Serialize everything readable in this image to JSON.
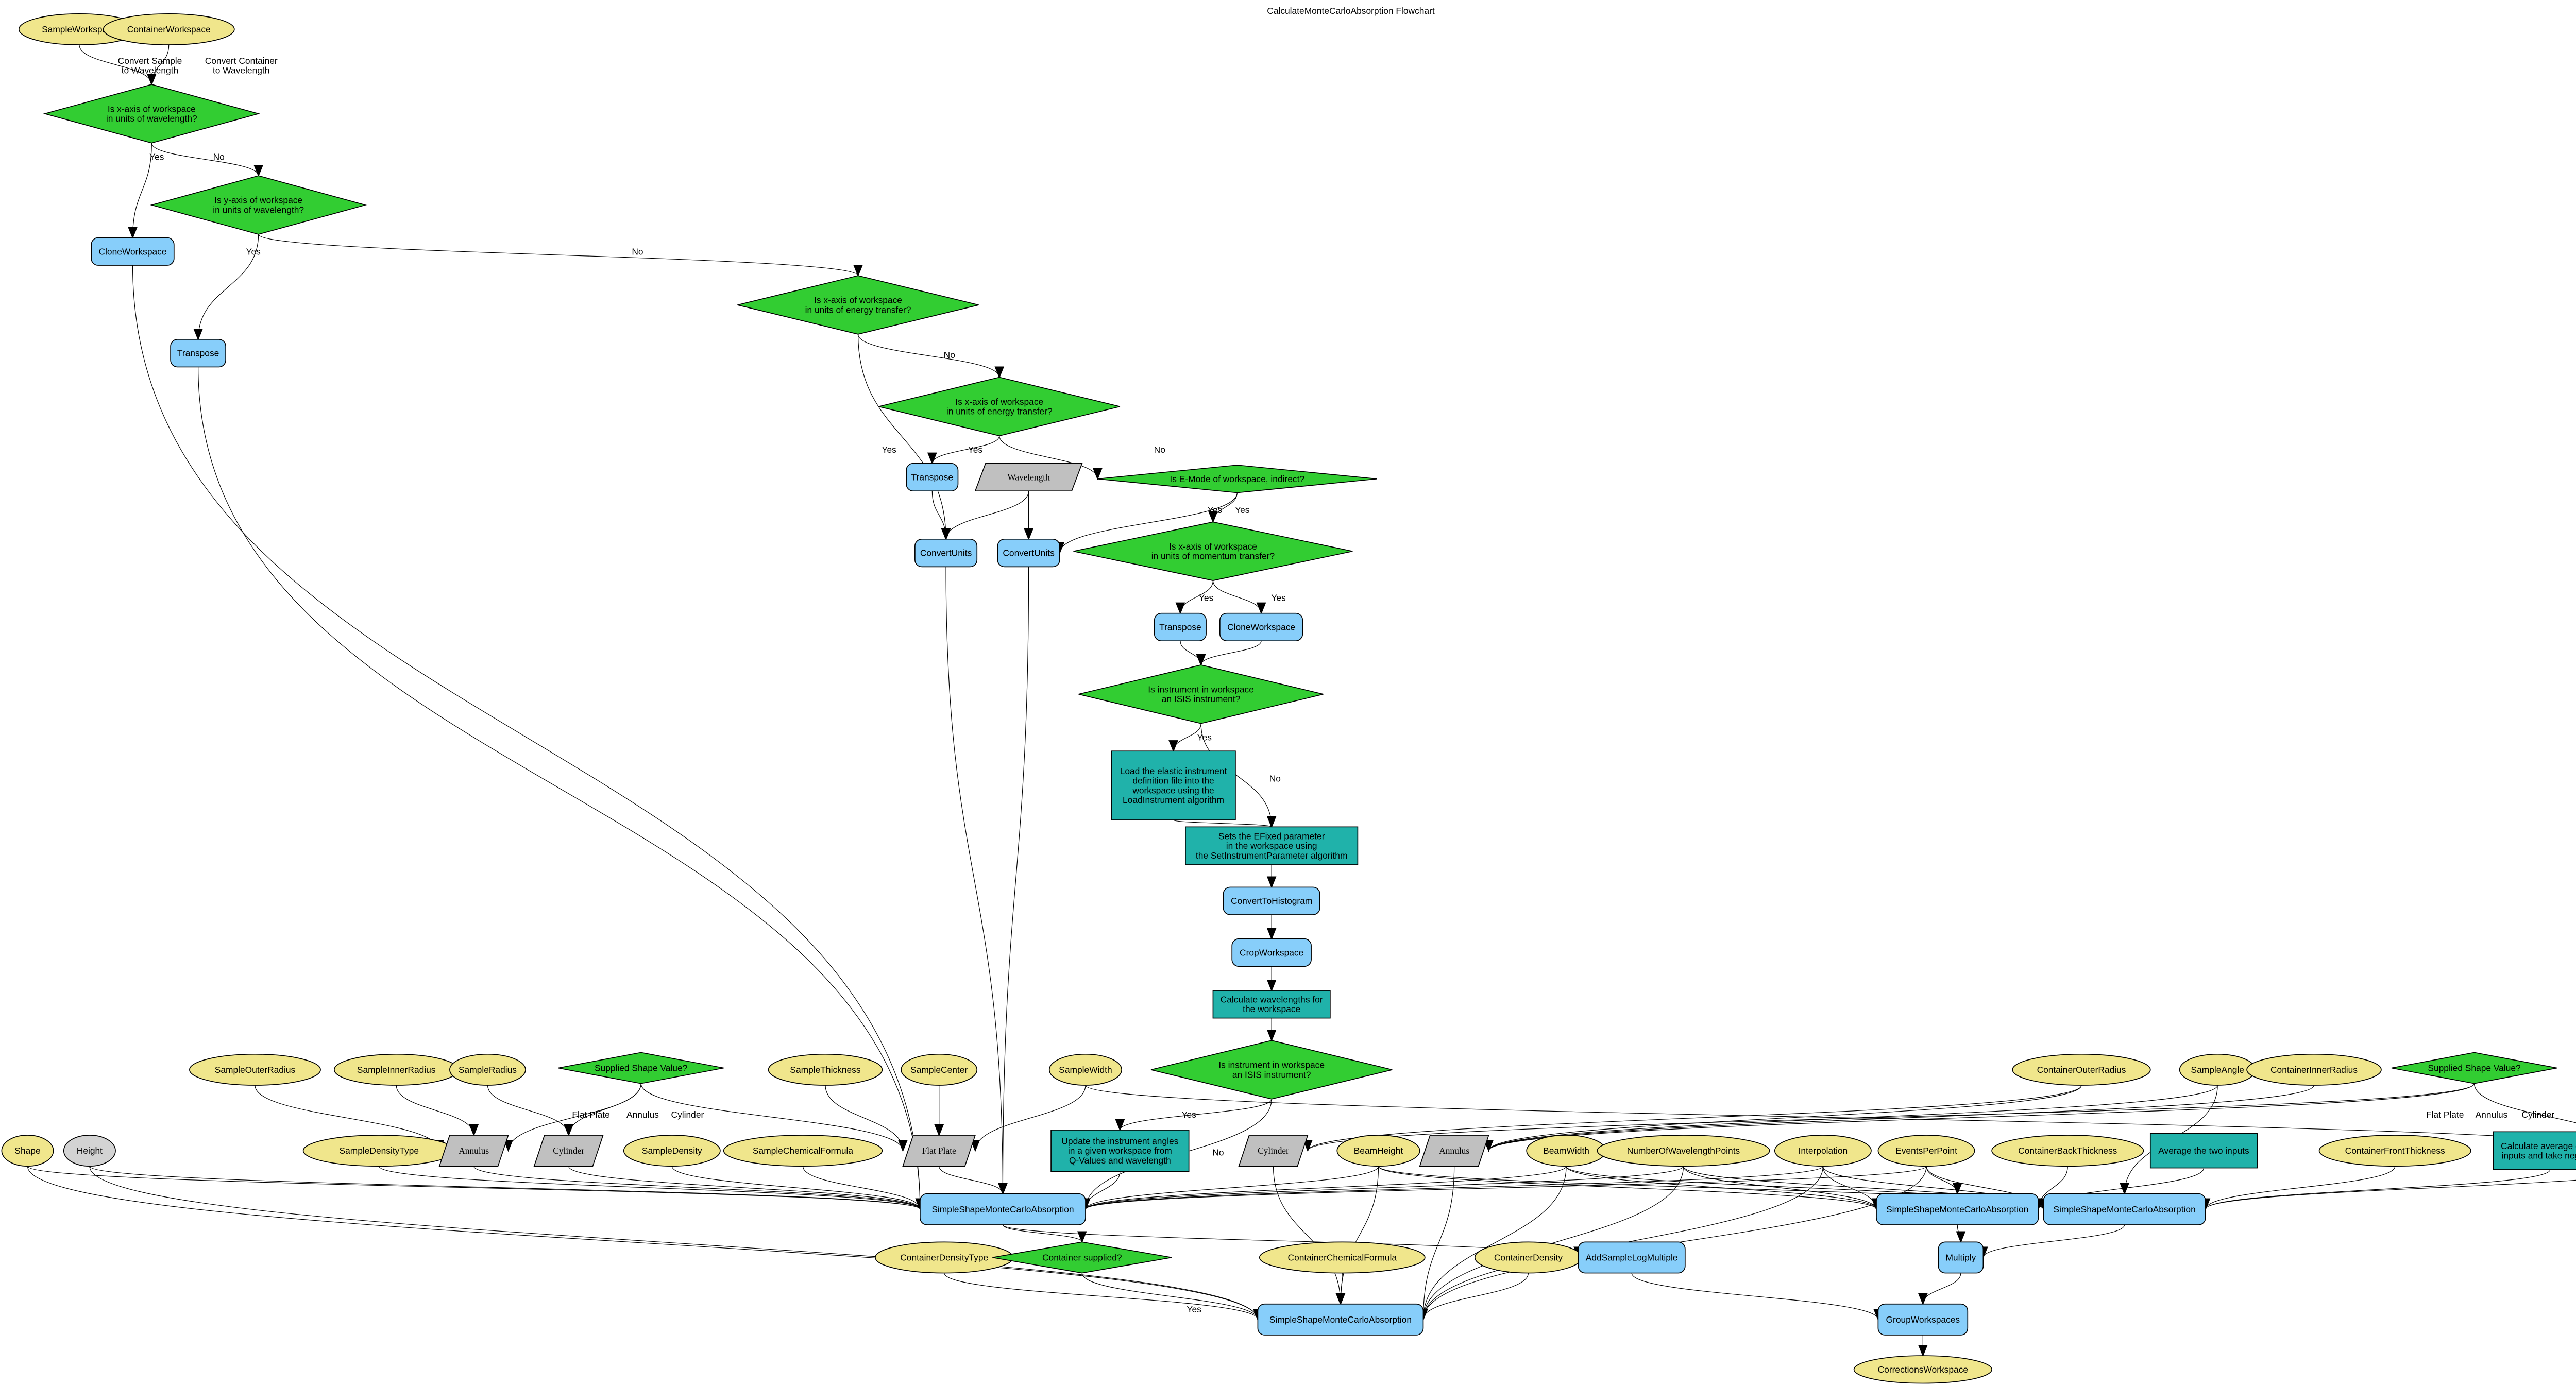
{
  "title": "CalculateMonteCarloAbsorption Flowchart",
  "colors": {
    "input": "#f0e68c",
    "optional_input": "#d3d3d3",
    "decision": "#32cd32",
    "algorithm": "#87cefa",
    "process": "#20b2aa",
    "value": "#c0c0c0"
  },
  "nodes": [
    {
      "id": "sampleWs",
      "label": "SampleWorkspace",
      "shape": "ellipse"
    },
    {
      "id": "containerWs",
      "label": "ContainerWorkspace",
      "shape": "ellipse"
    },
    {
      "id": "d1",
      "label": "Is x-axis of workspace\nin units of wavelength?",
      "shape": "diamond"
    },
    {
      "id": "d2",
      "label": "Is y-axis of workspace\nin units of wavelength?",
      "shape": "diamond"
    },
    {
      "id": "clone1",
      "label": "CloneWorkspace",
      "shape": "algorithm"
    },
    {
      "id": "tr1",
      "label": "Transpose",
      "shape": "algorithm"
    },
    {
      "id": "d3",
      "label": "Is x-axis of workspace\nin units of energy transfer?",
      "shape": "diamond"
    },
    {
      "id": "d4",
      "label": "Is x-axis of workspace\nin units of energy transfer?",
      "shape": "diamond"
    },
    {
      "id": "tr2",
      "label": "Transpose",
      "shape": "algorithm"
    },
    {
      "id": "wl",
      "label": "Wavelength",
      "shape": "parallelogram"
    },
    {
      "id": "d5",
      "label": "Is E-Mode of workspace, indirect?",
      "shape": "diamond"
    },
    {
      "id": "cu1",
      "label": "ConvertUnits",
      "shape": "algorithm"
    },
    {
      "id": "cu2",
      "label": "ConvertUnits",
      "shape": "algorithm"
    },
    {
      "id": "d6",
      "label": "Is x-axis of workspace\nin units of momentum transfer?",
      "shape": "diamond"
    },
    {
      "id": "tr3",
      "label": "Transpose",
      "shape": "algorithm"
    },
    {
      "id": "clone2",
      "label": "CloneWorkspace",
      "shape": "algorithm"
    },
    {
      "id": "d7",
      "label": "Is instrument in workspace\nan ISIS instrument?",
      "shape": "diamond"
    },
    {
      "id": "load",
      "label": "Load the elastic instrument\ndefinition file into the\nworkspace using the\nLoadInstrument algorithm",
      "shape": "process"
    },
    {
      "id": "efixed",
      "label": "Sets the EFixed parameter\nin the workspace using\nthe SetInstrumentParameter algorithm",
      "shape": "process"
    },
    {
      "id": "cth",
      "label": "ConvertToHistogram",
      "shape": "algorithm"
    },
    {
      "id": "crop",
      "label": "CropWorkspace",
      "shape": "algorithm"
    },
    {
      "id": "calcwl",
      "label": "Calculate wavelengths for\nthe workspace",
      "shape": "process"
    },
    {
      "id": "d8",
      "label": "Is instrument in workspace\nan ISIS instrument?",
      "shape": "diamond"
    },
    {
      "id": "sor",
      "label": "SampleOuterRadius",
      "shape": "ellipse"
    },
    {
      "id": "sir",
      "label": "SampleInnerRadius",
      "shape": "ellipse"
    },
    {
      "id": "sr",
      "label": "SampleRadius",
      "shape": "ellipse"
    },
    {
      "id": "ssv1",
      "label": "Supplied Shape Value?",
      "shape": "diamond"
    },
    {
      "id": "sth",
      "label": "SampleThickness",
      "shape": "ellipse"
    },
    {
      "id": "sc",
      "label": "SampleCenter",
      "shape": "ellipse"
    },
    {
      "id": "swd",
      "label": "SampleWidth",
      "shape": "ellipse"
    },
    {
      "id": "cor",
      "label": "ContainerOuterRadius",
      "shape": "ellipse"
    },
    {
      "id": "sang",
      "label": "SampleAngle",
      "shape": "ellipse"
    },
    {
      "id": "cir",
      "label": "ContainerInnerRadius",
      "shape": "ellipse"
    },
    {
      "id": "ssv2",
      "label": "Supplied Shape Value?",
      "shape": "diamond"
    },
    {
      "id": "shape",
      "label": "Shape",
      "shape": "ellipse"
    },
    {
      "id": "height",
      "label": "Height",
      "shape": "ellipse-gray"
    },
    {
      "id": "sdt",
      "label": "SampleDensityType",
      "shape": "ellipse"
    },
    {
      "id": "ann1",
      "label": "Annulus",
      "shape": "parallelogram"
    },
    {
      "id": "cyl1",
      "label": "Cylinder",
      "shape": "parallelogram"
    },
    {
      "id": "sd",
      "label": "SampleDensity",
      "shape": "ellipse"
    },
    {
      "id": "scf",
      "label": "SampleChemicalFormula",
      "shape": "ellipse"
    },
    {
      "id": "flat1",
      "label": "Flat Plate",
      "shape": "parallelogram"
    },
    {
      "id": "update",
      "label": "Update the instrument angles\nin a given workspace from\nQ-Values and wavelength",
      "shape": "process"
    },
    {
      "id": "cyl2",
      "label": "Cylinder",
      "shape": "parallelogram"
    },
    {
      "id": "bh",
      "label": "BeamHeight",
      "shape": "ellipse"
    },
    {
      "id": "ann2",
      "label": "Annulus",
      "shape": "parallelogram"
    },
    {
      "id": "bw",
      "label": "BeamWidth",
      "shape": "ellipse"
    },
    {
      "id": "nwp",
      "label": "NumberOfWavelengthPoints",
      "shape": "ellipse"
    },
    {
      "id": "interp",
      "label": "Interpolation",
      "shape": "ellipse"
    },
    {
      "id": "epp",
      "label": "EventsPerPoint",
      "shape": "ellipse"
    },
    {
      "id": "cbt",
      "label": "ContainerBackThickness",
      "shape": "ellipse"
    },
    {
      "id": "avg",
      "label": "Average the two inputs",
      "shape": "process"
    },
    {
      "id": "cft",
      "label": "ContainerFrontThickness",
      "shape": "ellipse"
    },
    {
      "id": "avgneg",
      "label": "Calculate average of two\ninputs and take negative",
      "shape": "process"
    },
    {
      "id": "flat2",
      "label": "Flat Plate",
      "shape": "parallelogram"
    },
    {
      "id": "ss1",
      "label": "SimpleShapeMonteCarloAbsorption",
      "shape": "algorithm"
    },
    {
      "id": "ssA",
      "label": "SimpleShapeMonteCarloAbsorption",
      "shape": "algorithm"
    },
    {
      "id": "ssB",
      "label": "SimpleShapeMonteCarloAbsorption",
      "shape": "algorithm"
    },
    {
      "id": "cdt",
      "label": "ContainerDensityType",
      "shape": "ellipse"
    },
    {
      "id": "csup",
      "label": "Container supplied?",
      "shape": "diamond"
    },
    {
      "id": "ccf",
      "label": "ContainerChemicalFormula",
      "shape": "ellipse"
    },
    {
      "id": "cd",
      "label": "ContainerDensity",
      "shape": "ellipse"
    },
    {
      "id": "addlog",
      "label": "AddSampleLogMultiple",
      "shape": "algorithm"
    },
    {
      "id": "mult",
      "label": "Multiply",
      "shape": "algorithm"
    },
    {
      "id": "ss3",
      "label": "SimpleShapeMonteCarloAbsorption",
      "shape": "algorithm"
    },
    {
      "id": "group",
      "label": "GroupWorkspaces",
      "shape": "algorithm"
    },
    {
      "id": "corr",
      "label": "CorrectionsWorkspace",
      "shape": "ellipse"
    }
  ],
  "edges": [
    {
      "from": "sampleWs",
      "to": "d1",
      "label": "Convert Sample\nto Wavelength"
    },
    {
      "from": "containerWs",
      "to": "d1",
      "label": "Convert Container\nto Wavelength"
    },
    {
      "from": "d1",
      "to": "clone1",
      "label": "Yes"
    },
    {
      "from": "d1",
      "to": "d2",
      "label": "No"
    },
    {
      "from": "d2",
      "to": "tr1",
      "label": "Yes"
    },
    {
      "from": "d2",
      "to": "d3",
      "label": "No"
    },
    {
      "from": "d3",
      "to": "cu1",
      "label": "Yes"
    },
    {
      "from": "d3",
      "to": "d4",
      "label": "No"
    },
    {
      "from": "d4",
      "to": "tr2",
      "label": "Yes"
    },
    {
      "from": "d4",
      "to": "d5",
      "label": "No"
    },
    {
      "from": "tr2",
      "to": "cu1",
      "label": ""
    },
    {
      "from": "wl",
      "to": "cu1",
      "label": ""
    },
    {
      "from": "wl",
      "to": "cu2",
      "label": ""
    },
    {
      "from": "d5",
      "to": "d6",
      "label": "Yes"
    },
    {
      "from": "d5",
      "to": "cu2",
      "label": "Yes"
    },
    {
      "from": "d6",
      "to": "tr3",
      "label": "Yes"
    },
    {
      "from": "d6",
      "to": "clone2",
      "label": "Yes"
    },
    {
      "from": "tr3",
      "to": "d7",
      "label": ""
    },
    {
      "from": "clone2",
      "to": "d7",
      "label": ""
    },
    {
      "from": "d7",
      "to": "load",
      "label": "Yes"
    },
    {
      "from": "d7",
      "to": "efixed",
      "label": "No"
    },
    {
      "from": "load",
      "to": "efixed",
      "label": ""
    },
    {
      "from": "efixed",
      "to": "cth",
      "label": ""
    },
    {
      "from": "cth",
      "to": "crop",
      "label": ""
    },
    {
      "from": "crop",
      "to": "calcwl",
      "label": ""
    },
    {
      "from": "calcwl",
      "to": "d8",
      "label": ""
    },
    {
      "from": "d8",
      "to": "update",
      "label": "Yes"
    },
    {
      "from": "d8",
      "to": "ss1",
      "label": "No"
    },
    {
      "from": "update",
      "to": "ss1",
      "label": ""
    },
    {
      "from": "clone1",
      "to": "ss1",
      "label": ""
    },
    {
      "from": "tr1",
      "to": "ss1",
      "label": ""
    },
    {
      "from": "cu1",
      "to": "ss1",
      "label": ""
    },
    {
      "from": "cu2",
      "to": "ss1",
      "label": ""
    },
    {
      "from": "sor",
      "to": "ann1",
      "label": ""
    },
    {
      "from": "sir",
      "to": "ann1",
      "label": ""
    },
    {
      "from": "sr",
      "to": "cyl1",
      "label": ""
    },
    {
      "from": "ssv1",
      "to": "flat1",
      "label": "Flat Plate"
    },
    {
      "from": "ssv1",
      "to": "ann1",
      "label": "Annulus"
    },
    {
      "from": "ssv1",
      "to": "cyl1",
      "label": "Cylinder"
    },
    {
      "from": "sth",
      "to": "flat1",
      "label": ""
    },
    {
      "from": "sc",
      "to": "flat1",
      "label": ""
    },
    {
      "from": "swd",
      "to": "flat1",
      "label": ""
    },
    {
      "from": "swd",
      "to": "flat2",
      "label": ""
    },
    {
      "from": "ann1",
      "to": "ss1",
      "label": ""
    },
    {
      "from": "cyl1",
      "to": "ss1",
      "label": ""
    },
    {
      "from": "flat1",
      "to": "ss1",
      "label": ""
    },
    {
      "from": "sdt",
      "to": "ss1",
      "label": ""
    },
    {
      "from": "sd",
      "to": "ss1",
      "label": ""
    },
    {
      "from": "scf",
      "to": "ss1",
      "label": ""
    },
    {
      "from": "shape",
      "to": "ss1",
      "label": ""
    },
    {
      "from": "height",
      "to": "ss1",
      "label": ""
    },
    {
      "from": "shape",
      "to": "ss3",
      "label": ""
    },
    {
      "from": "height",
      "to": "ss3",
      "label": ""
    },
    {
      "from": "bh",
      "to": "ss1",
      "label": ""
    },
    {
      "from": "bw",
      "to": "ss1",
      "label": ""
    },
    {
      "from": "nwp",
      "to": "ss1",
      "label": ""
    },
    {
      "from": "interp",
      "to": "ss1",
      "label": ""
    },
    {
      "from": "epp",
      "to": "ss1",
      "label": ""
    },
    {
      "from": "bh",
      "to": "ss3",
      "label": ""
    },
    {
      "from": "bw",
      "to": "ss3",
      "label": ""
    },
    {
      "from": "nwp",
      "to": "ss3",
      "label": ""
    },
    {
      "from": "interp",
      "to": "ss3",
      "label": ""
    },
    {
      "from": "epp",
      "to": "ss3",
      "label": ""
    },
    {
      "from": "bh",
      "to": "ssA",
      "label": ""
    },
    {
      "from": "bw",
      "to": "ssA",
      "label": ""
    },
    {
      "from": "nwp",
      "to": "ssA",
      "label": ""
    },
    {
      "from": "interp",
      "to": "ssA",
      "label": ""
    },
    {
      "from": "epp",
      "to": "ssA",
      "label": ""
    },
    {
      "from": "bh",
      "to": "ssB",
      "label": ""
    },
    {
      "from": "bw",
      "to": "ssB",
      "label": ""
    },
    {
      "from": "nwp",
      "to": "ssB",
      "label": ""
    },
    {
      "from": "interp",
      "to": "ssB",
      "label": ""
    },
    {
      "from": "epp",
      "to": "ssB",
      "label": ""
    },
    {
      "from": "cor",
      "to": "cyl2",
      "label": ""
    },
    {
      "from": "cor",
      "to": "ann2",
      "label": ""
    },
    {
      "from": "cir",
      "to": "ann2",
      "label": ""
    },
    {
      "from": "sang",
      "to": "ann2",
      "label": ""
    },
    {
      "from": "sang",
      "to": "ssB",
      "label": ""
    },
    {
      "from": "ssv2",
      "to": "flat2",
      "label": "Flat Plate"
    },
    {
      "from": "ssv2",
      "to": "ann2",
      "label": "Annulus"
    },
    {
      "from": "ssv2",
      "to": "cyl2",
      "label": "Cylinder"
    },
    {
      "from": "cyl2",
      "to": "ss3",
      "label": ""
    },
    {
      "from": "ann2",
      "to": "ss3",
      "label": ""
    },
    {
      "from": "cbt",
      "to": "ssA",
      "label": ""
    },
    {
      "from": "avg",
      "to": "ssA",
      "label": ""
    },
    {
      "from": "cft",
      "to": "ssB",
      "label": ""
    },
    {
      "from": "avgneg",
      "to": "ssB",
      "label": ""
    },
    {
      "from": "flat2",
      "to": "ssB",
      "label": ""
    },
    {
      "from": "ss1",
      "to": "csup",
      "label": ""
    },
    {
      "from": "csup",
      "to": "ss3",
      "label": "Yes"
    },
    {
      "from": "cdt",
      "to": "ss3",
      "label": ""
    },
    {
      "from": "ccf",
      "to": "ss3",
      "label": ""
    },
    {
      "from": "cd",
      "to": "ss3",
      "label": ""
    },
    {
      "from": "ss1",
      "to": "addlog",
      "label": ""
    },
    {
      "from": "addlog",
      "to": "group",
      "label": ""
    },
    {
      "from": "ssA",
      "to": "mult",
      "label": ""
    },
    {
      "from": "ssB",
      "to": "mult",
      "label": ""
    },
    {
      "from": "mult",
      "to": "group",
      "label": ""
    },
    {
      "from": "group",
      "to": "corr",
      "label": ""
    }
  ]
}
